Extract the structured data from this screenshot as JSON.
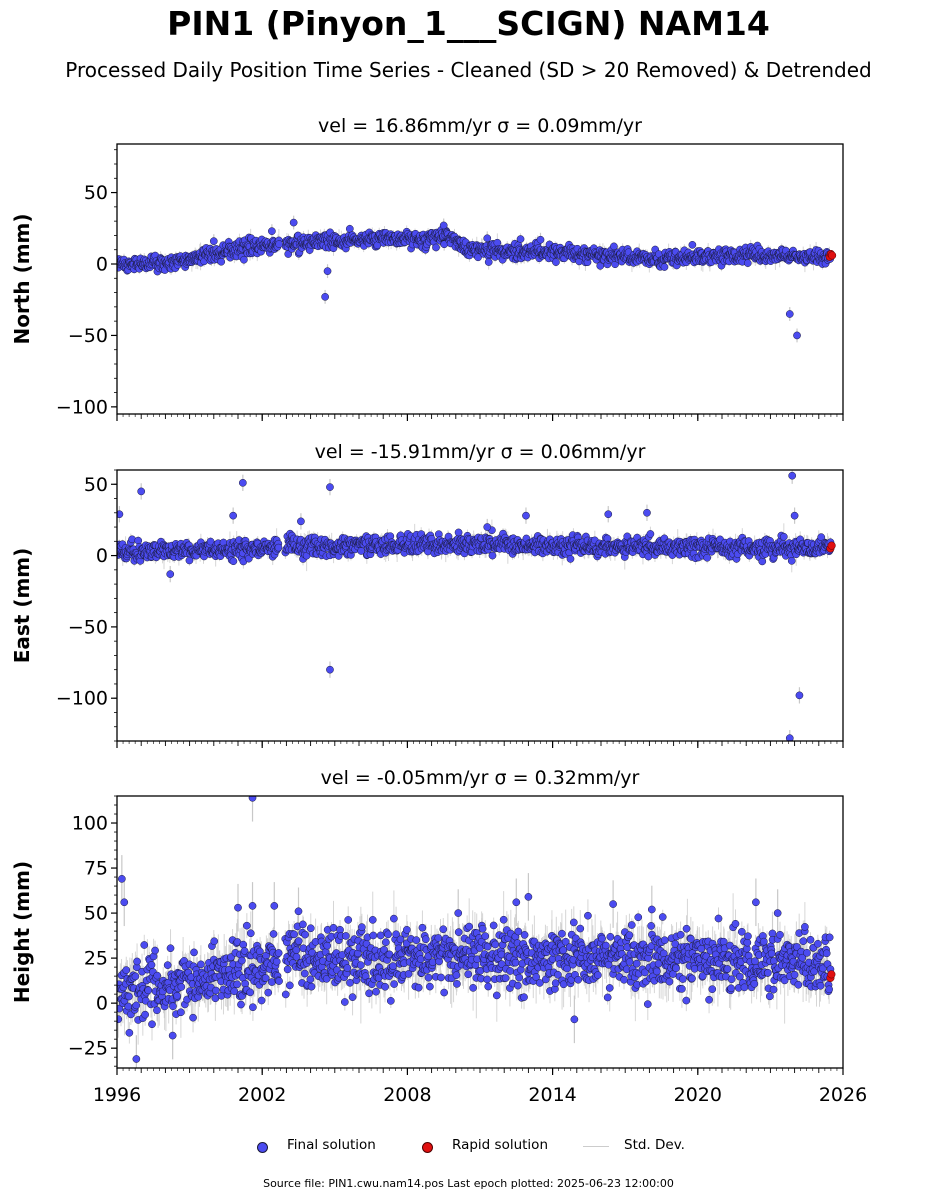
{
  "title": "PIN1 (Pinyon_1___SCIGN) NAM14",
  "subtitle": "Processed Daily Position Time Series - Cleaned (SD > 20 Removed) & Detrended",
  "footer": "Source file: PIN1.cwu.nam14.pos  Last epoch plotted: 2025-06-23 12:00:00",
  "legend": {
    "final": "Final solution",
    "rapid": "Rapid solution",
    "std": "Std. Dev."
  },
  "colors": {
    "final": "#4b4bf0",
    "rapid": "#e01010",
    "std": "#c8c8c8",
    "edge": "#1a1a3a"
  },
  "chart_data": [
    {
      "type": "scatter",
      "panel": "north",
      "title": "vel = 16.86mm/yr   σ = 0.09mm/yr",
      "ylabel": "North (mm)",
      "xlim": [
        1996,
        2026
      ],
      "ylim": [
        -105,
        84
      ],
      "yticks": [
        50,
        0,
        -50,
        -100
      ],
      "ytick_labels": [
        "50",
        "0",
        "−50",
        "−100"
      ],
      "trend": [
        [
          1996,
          0
        ],
        [
          1998,
          0
        ],
        [
          2000,
          8
        ],
        [
          2001.5,
          12
        ],
        [
          2003,
          14
        ],
        [
          2004.5,
          16
        ],
        [
          2006,
          17
        ],
        [
          2008,
          18
        ],
        [
          2009.8,
          19
        ],
        [
          2010.5,
          10
        ],
        [
          2012,
          9
        ],
        [
          2014,
          8
        ],
        [
          2016,
          6
        ],
        [
          2018,
          4
        ],
        [
          2020,
          5
        ],
        [
          2022,
          6
        ],
        [
          2024,
          5
        ],
        [
          2025.5,
          5
        ]
      ],
      "noise_sd": 2.5,
      "error_sd": 2.2,
      "outliers": [
        [
          2002.4,
          23
        ],
        [
          2003.3,
          29
        ],
        [
          2004.6,
          -23
        ],
        [
          2004.7,
          -5
        ],
        [
          2023.8,
          -35
        ],
        [
          2024.1,
          -50
        ],
        [
          2000.0,
          16
        ],
        [
          2013.5,
          17
        ],
        [
          2009.5,
          27
        ],
        [
          2011.3,
          18
        ]
      ],
      "rapid": [
        [
          2025.45,
          5
        ],
        [
          2025.5,
          7
        ],
        [
          2025.55,
          6
        ]
      ]
    },
    {
      "type": "scatter",
      "panel": "east",
      "title": "vel = -15.91mm/yr   σ = 0.06mm/yr",
      "ylabel": "East (mm)",
      "xlim": [
        1996,
        2026
      ],
      "ylim": [
        -130,
        60
      ],
      "yticks": [
        50,
        0,
        -50,
        -100
      ],
      "ytick_labels": [
        "50",
        "0",
        "−50",
        "−100"
      ],
      "trend": [
        [
          1996,
          2
        ],
        [
          2000,
          4
        ],
        [
          2003,
          6
        ],
        [
          2006,
          7
        ],
        [
          2010,
          8
        ],
        [
          2014,
          7
        ],
        [
          2018,
          6
        ],
        [
          2022,
          5
        ],
        [
          2025.5,
          5
        ]
      ],
      "noise_sd": 3.2,
      "error_sd": 2.6,
      "outliers": [
        [
          1996.1,
          29
        ],
        [
          1997.0,
          45
        ],
        [
          2000.8,
          28
        ],
        [
          2001.2,
          51
        ],
        [
          2004.8,
          48
        ],
        [
          2004.8,
          -80
        ],
        [
          2003.6,
          24
        ],
        [
          2016.3,
          29
        ],
        [
          2017.9,
          30
        ],
        [
          2012.9,
          28
        ],
        [
          2023.9,
          56
        ],
        [
          2024.0,
          28
        ],
        [
          2024.2,
          -98
        ],
        [
          2023.8,
          -128
        ],
        [
          1998.2,
          -13
        ],
        [
          2011.3,
          20
        ]
      ],
      "rapid": [
        [
          2025.48,
          5
        ],
        [
          2025.53,
          7
        ]
      ]
    },
    {
      "type": "scatter",
      "panel": "height",
      "title": "vel = -0.05mm/yr   σ = 0.32mm/yr",
      "ylabel": "Height (mm)",
      "xlim": [
        1996,
        2026
      ],
      "ylim": [
        -36,
        115
      ],
      "yticks": [
        100,
        75,
        50,
        25,
        0,
        -25
      ],
      "ytick_labels": [
        "100",
        "75",
        "50",
        "25",
        "0",
        "−25"
      ],
      "xticks": [
        1996,
        2002,
        2008,
        2014,
        2020,
        2026
      ],
      "xtick_labels": [
        "1996",
        "2002",
        "2008",
        "2014",
        "2020",
        "2026"
      ],
      "trend": [
        [
          1996,
          6
        ],
        [
          1997.5,
          10
        ],
        [
          1999,
          12
        ],
        [
          2000.5,
          18
        ],
        [
          2002,
          20
        ],
        [
          2003,
          24
        ],
        [
          2006,
          26
        ],
        [
          2009,
          26
        ],
        [
          2012,
          25
        ],
        [
          2015,
          27
        ],
        [
          2018,
          25
        ],
        [
          2021,
          23
        ],
        [
          2024,
          22
        ],
        [
          2025.5,
          22
        ]
      ],
      "noise_sd": 8.5,
      "error_sd": 6,
      "outliers": [
        [
          1996.2,
          69
        ],
        [
          1996.3,
          56
        ],
        [
          1996.8,
          -31
        ],
        [
          2001.0,
          53
        ],
        [
          2001.6,
          54
        ],
        [
          2001.6,
          114
        ],
        [
          2002.5,
          54
        ],
        [
          2003.5,
          51
        ],
        [
          2013.0,
          59
        ],
        [
          2012.5,
          56
        ],
        [
          2014.9,
          -9
        ],
        [
          2018.1,
          52
        ],
        [
          2022.4,
          56
        ],
        [
          2023.3,
          50
        ],
        [
          2016.5,
          55
        ],
        [
          2010.1,
          50
        ],
        [
          1998.3,
          -18
        ]
      ],
      "rapid": [
        [
          2025.48,
          14
        ],
        [
          2025.52,
          16
        ]
      ]
    }
  ]
}
